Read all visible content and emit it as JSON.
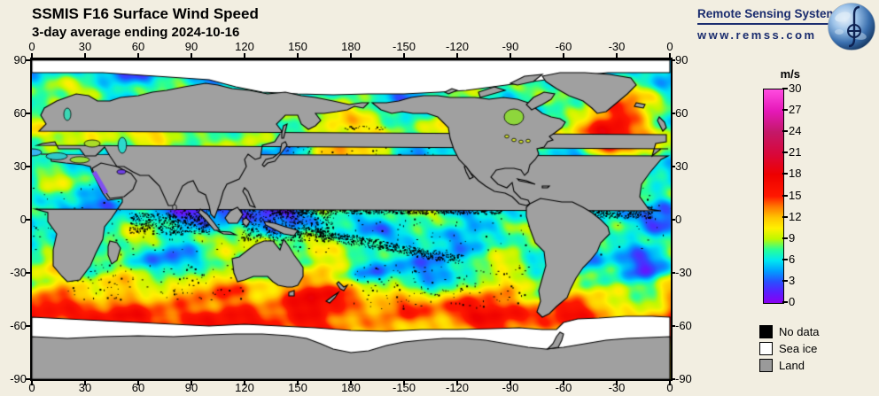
{
  "page": {
    "background": "#f2eee1"
  },
  "header": {
    "title": "SSMIS F16 Surface Wind Speed",
    "subtitle": "3-day average ending 2024-10-16"
  },
  "brand": {
    "name": "Remote Sensing Systems",
    "url": "www.remss.com",
    "color": "#1a2c6e",
    "logo_icon": "earth-globe-with-integral-symbol"
  },
  "map": {
    "lon_ticks": [
      "0",
      "30",
      "60",
      "90",
      "120",
      "150",
      "180",
      "-150",
      "-120",
      "-90",
      "-60",
      "-30",
      "0"
    ],
    "lat_ticks": [
      "90",
      "60",
      "30",
      "0",
      "-30",
      "-60",
      "-90"
    ],
    "land_color": "#a0a0a0",
    "sea_ice_color": "#ffffff",
    "no_data_color": "#000000"
  },
  "colorbar": {
    "unit": "m/s",
    "ticks": [
      "30",
      "27",
      "24",
      "21",
      "18",
      "15",
      "12",
      "9",
      "6",
      "3",
      "0"
    ],
    "min": 0,
    "max": 30,
    "step": 3,
    "stops": [
      {
        "v": 0,
        "c": "#8a00f0"
      },
      {
        "v": 1.5,
        "c": "#5a1eff"
      },
      {
        "v": 3,
        "c": "#2850ff"
      },
      {
        "v": 4.5,
        "c": "#00a0ff"
      },
      {
        "v": 6,
        "c": "#00e8f0"
      },
      {
        "v": 7.5,
        "c": "#28ff96"
      },
      {
        "v": 9,
        "c": "#bef800"
      },
      {
        "v": 10.5,
        "c": "#fff000"
      },
      {
        "v": 12,
        "c": "#ffc400"
      },
      {
        "v": 13.5,
        "c": "#ff7a00"
      },
      {
        "v": 15,
        "c": "#ff1800"
      },
      {
        "v": 18,
        "c": "#ee0000"
      },
      {
        "v": 21,
        "c": "#d8083c"
      },
      {
        "v": 24,
        "c": "#c41868"
      },
      {
        "v": 27,
        "c": "#e518b8"
      },
      {
        "v": 30,
        "c": "#ff4ce0"
      }
    ]
  },
  "legend": {
    "items": [
      {
        "label": "No data",
        "color": "#000000"
      },
      {
        "label": "Sea ice",
        "color": "#ffffff"
      },
      {
        "label": "Land",
        "color": "#9a9a9a"
      }
    ]
  },
  "chart_data": {
    "type": "heatmap",
    "title": "SSMIS F16 Surface Wind Speed",
    "subtitle": "3-day average ending 2024-10-16",
    "variable": "surface wind speed",
    "units": "m/s",
    "projection": "equirectangular",
    "x_axis": {
      "label": "longitude",
      "ticks": [
        0,
        30,
        60,
        90,
        120,
        150,
        180,
        -150,
        -120,
        -90,
        -60,
        -30,
        0
      ],
      "range_deg_east": [
        0,
        360
      ]
    },
    "y_axis": {
      "label": "latitude",
      "ticks": [
        90,
        60,
        30,
        0,
        -30,
        -60,
        -90
      ],
      "range": [
        -90,
        90
      ]
    },
    "color_scale": {
      "min": 0,
      "max": 30,
      "tick_step": 3,
      "unit": "m/s"
    },
    "flag_categories": [
      "No data",
      "Sea ice",
      "Land"
    ],
    "notable_features": [
      "high winds 12-18 m/s band across Southern Ocean 40S-60S",
      "red storm maximum ~15-18 m/s in North Atlantic near 50N",
      "low winds 2-5 m/s (purple) western tropical Pacific and subtropical gyres",
      "black no-data speckles along tropical rain bands (ITCZ/SPCZ)",
      "sea ice (white) around Antarctica below ~55S and Arctic above ~72-83N"
    ]
  }
}
